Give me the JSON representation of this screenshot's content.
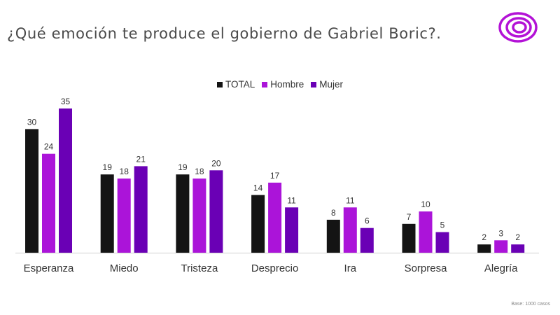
{
  "header": {
    "title": "¿Qué emoción te produce el gobierno de Gabriel Boric?."
  },
  "logo": {
    "icon": "concentric-circles-logo",
    "color": "#b312d6"
  },
  "footnote": "Base: 1000 casos",
  "colors": {
    "TOTAL": "#141414",
    "Hombre": "#ab14d9",
    "Mujer": "#6a00b5"
  },
  "chart_data": {
    "type": "bar",
    "title": "¿Qué emoción te produce el gobierno de Gabriel Boric?.",
    "xlabel": "",
    "ylabel": "",
    "ylim": [
      0,
      35
    ],
    "grid": false,
    "legend_position": "top-center",
    "categories": [
      "Esperanza",
      "Miedo",
      "Tristeza",
      "Desprecio",
      "Ira",
      "Sorpresa",
      "Alegría"
    ],
    "series": [
      {
        "name": "TOTAL",
        "values": [
          30,
          19,
          19,
          14,
          8,
          7,
          2
        ]
      },
      {
        "name": "Hombre",
        "values": [
          24,
          18,
          18,
          17,
          11,
          10,
          3
        ]
      },
      {
        "name": "Mujer",
        "values": [
          35,
          21,
          20,
          11,
          6,
          5,
          2
        ]
      }
    ]
  }
}
